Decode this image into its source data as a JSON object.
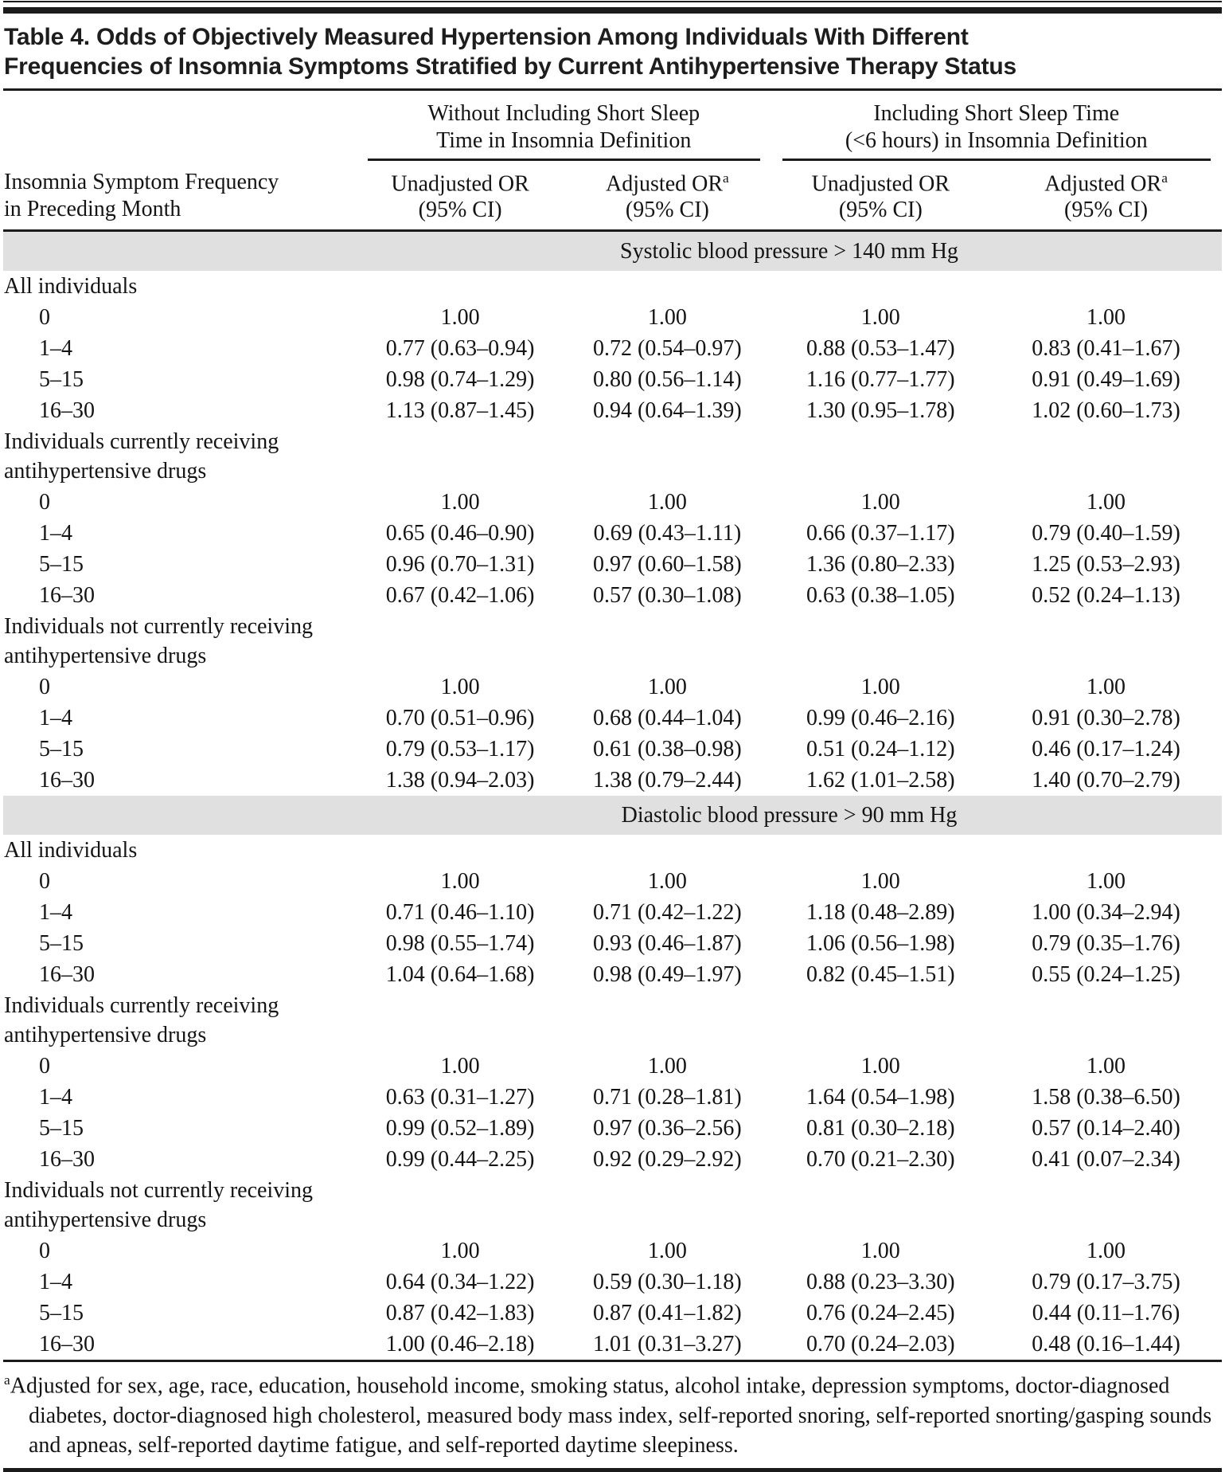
{
  "title_lines": [
    "Table 4. Odds of Objectively Measured Hypertension Among Individuals With Different",
    "Frequencies of Insomnia Symptoms Stratified by Current Antihypertensive Therapy Status"
  ],
  "header": {
    "stub_lines": [
      "Insomnia Symptom Frequency",
      "in Preceding Month"
    ],
    "groups": [
      {
        "line1": "Without Including Short Sleep",
        "line2": "Time in Insomnia Definition"
      },
      {
        "line1": "Including Short Sleep Time",
        "line2": "(<6 hours) in Insomnia Definition"
      }
    ],
    "sub_columns": [
      {
        "line1": "Unadjusted OR",
        "sup": "",
        "line2": "(95% CI)"
      },
      {
        "line1": "Adjusted OR",
        "sup": "a",
        "line2": "(95% CI)"
      },
      {
        "line1": "Unadjusted OR",
        "sup": "",
        "line2": "(95% CI)"
      },
      {
        "line1": "Adjusted OR",
        "sup": "a",
        "line2": "(95% CI)"
      }
    ]
  },
  "band_color": "#e0e0e0",
  "sections": [
    {
      "band": "Systolic blood pressure > 140 mm Hg",
      "subsections": [
        {
          "label": "All individuals",
          "rows": [
            {
              "freq": "0",
              "values": [
                "1.00",
                "1.00",
                "1.00",
                "1.00"
              ]
            },
            {
              "freq": "1–4",
              "values": [
                "0.77 (0.63–0.94)",
                "0.72 (0.54–0.97)",
                "0.88 (0.53–1.47)",
                "0.83 (0.41–1.67)"
              ]
            },
            {
              "freq": "5–15",
              "values": [
                "0.98 (0.74–1.29)",
                "0.80 (0.56–1.14)",
                "1.16 (0.77–1.77)",
                "0.91 (0.49–1.69)"
              ]
            },
            {
              "freq": "16–30",
              "values": [
                "1.13 (0.87–1.45)",
                "0.94 (0.64–1.39)",
                "1.30 (0.95–1.78)",
                "1.02 (0.60–1.73)"
              ]
            }
          ]
        },
        {
          "label": "Individuals currently receiving antihypertensive drugs",
          "rows": [
            {
              "freq": "0",
              "values": [
                "1.00",
                "1.00",
                "1.00",
                "1.00"
              ]
            },
            {
              "freq": "1–4",
              "values": [
                "0.65 (0.46–0.90)",
                "0.69 (0.43–1.11)",
                "0.66 (0.37–1.17)",
                "0.79 (0.40–1.59)"
              ]
            },
            {
              "freq": "5–15",
              "values": [
                "0.96 (0.70–1.31)",
                "0.97 (0.60–1.58)",
                "1.36 (0.80–2.33)",
                "1.25 (0.53–2.93)"
              ]
            },
            {
              "freq": "16–30",
              "values": [
                "0.67 (0.42–1.06)",
                "0.57 (0.30–1.08)",
                "0.63 (0.38–1.05)",
                "0.52 (0.24–1.13)"
              ]
            }
          ]
        },
        {
          "label": "Individuals not currently receiving antihypertensive drugs",
          "rows": [
            {
              "freq": "0",
              "values": [
                "1.00",
                "1.00",
                "1.00",
                "1.00"
              ]
            },
            {
              "freq": "1–4",
              "values": [
                "0.70 (0.51–0.96)",
                "0.68 (0.44–1.04)",
                "0.99 (0.46–2.16)",
                "0.91 (0.30–2.78)"
              ]
            },
            {
              "freq": "5–15",
              "values": [
                "0.79 (0.53–1.17)",
                "0.61 (0.38–0.98)",
                "0.51 (0.24–1.12)",
                "0.46 (0.17–1.24)"
              ]
            },
            {
              "freq": "16–30",
              "values": [
                "1.38 (0.94–2.03)",
                "1.38 (0.79–2.44)",
                "1.62 (1.01–2.58)",
                "1.40 (0.70–2.79)"
              ]
            }
          ]
        }
      ]
    },
    {
      "band": "Diastolic blood pressure > 90 mm Hg",
      "subsections": [
        {
          "label": "All individuals",
          "rows": [
            {
              "freq": "0",
              "values": [
                "1.00",
                "1.00",
                "1.00",
                "1.00"
              ]
            },
            {
              "freq": "1–4",
              "values": [
                "0.71 (0.46–1.10)",
                "0.71 (0.42–1.22)",
                "1.18 (0.48–2.89)",
                "1.00 (0.34–2.94)"
              ]
            },
            {
              "freq": "5–15",
              "values": [
                "0.98 (0.55–1.74)",
                "0.93 (0.46–1.87)",
                "1.06 (0.56–1.98)",
                "0.79 (0.35–1.76)"
              ]
            },
            {
              "freq": "16–30",
              "values": [
                "1.04 (0.64–1.68)",
                "0.98 (0.49–1.97)",
                "0.82 (0.45–1.51)",
                "0.55 (0.24–1.25)"
              ]
            }
          ]
        },
        {
          "label": "Individuals currently receiving antihypertensive drugs",
          "rows": [
            {
              "freq": "0",
              "values": [
                "1.00",
                "1.00",
                "1.00",
                "1.00"
              ]
            },
            {
              "freq": "1–4",
              "values": [
                "0.63 (0.31–1.27)",
                "0.71 (0.28–1.81)",
                "1.64 (0.54–1.98)",
                "1.58 (0.38–6.50)"
              ]
            },
            {
              "freq": "5–15",
              "values": [
                "0.99 (0.52–1.89)",
                "0.97 (0.36–2.56)",
                "0.81 (0.30–2.18)",
                "0.57 (0.14–2.40)"
              ]
            },
            {
              "freq": "16–30",
              "values": [
                "0.99 (0.44–2.25)",
                "0.92 (0.29–2.92)",
                "0.70 (0.21–2.30)",
                "0.41 (0.07–2.34)"
              ]
            }
          ]
        },
        {
          "label": "Individuals not currently receiving antihypertensive drugs",
          "rows": [
            {
              "freq": "0",
              "values": [
                "1.00",
                "1.00",
                "1.00",
                "1.00"
              ]
            },
            {
              "freq": "1–4",
              "values": [
                "0.64 (0.34–1.22)",
                "0.59 (0.30–1.18)",
                "0.88 (0.23–3.30)",
                "0.79 (0.17–3.75)"
              ]
            },
            {
              "freq": "5–15",
              "values": [
                "0.87 (0.42–1.83)",
                "0.87 (0.41–1.82)",
                "0.76 (0.24–2.45)",
                "0.44 (0.11–1.76)"
              ]
            },
            {
              "freq": "16–30",
              "values": [
                "1.00 (0.46–2.18)",
                "1.01 (0.31–3.27)",
                "0.70 (0.24–2.03)",
                "0.48 (0.16–1.44)"
              ]
            }
          ]
        }
      ]
    }
  ],
  "footnote": {
    "sup": "a",
    "text": "Adjusted for sex, age, race, education, household income, smoking status, alcohol intake, depression symptoms, doctor-diagnosed diabetes, doctor-diagnosed high cholesterol, measured body mass index, self-reported snoring, self-reported snorting/gasping sounds and apneas, self-reported daytime fatigue, and self-reported daytime sleepiness."
  }
}
